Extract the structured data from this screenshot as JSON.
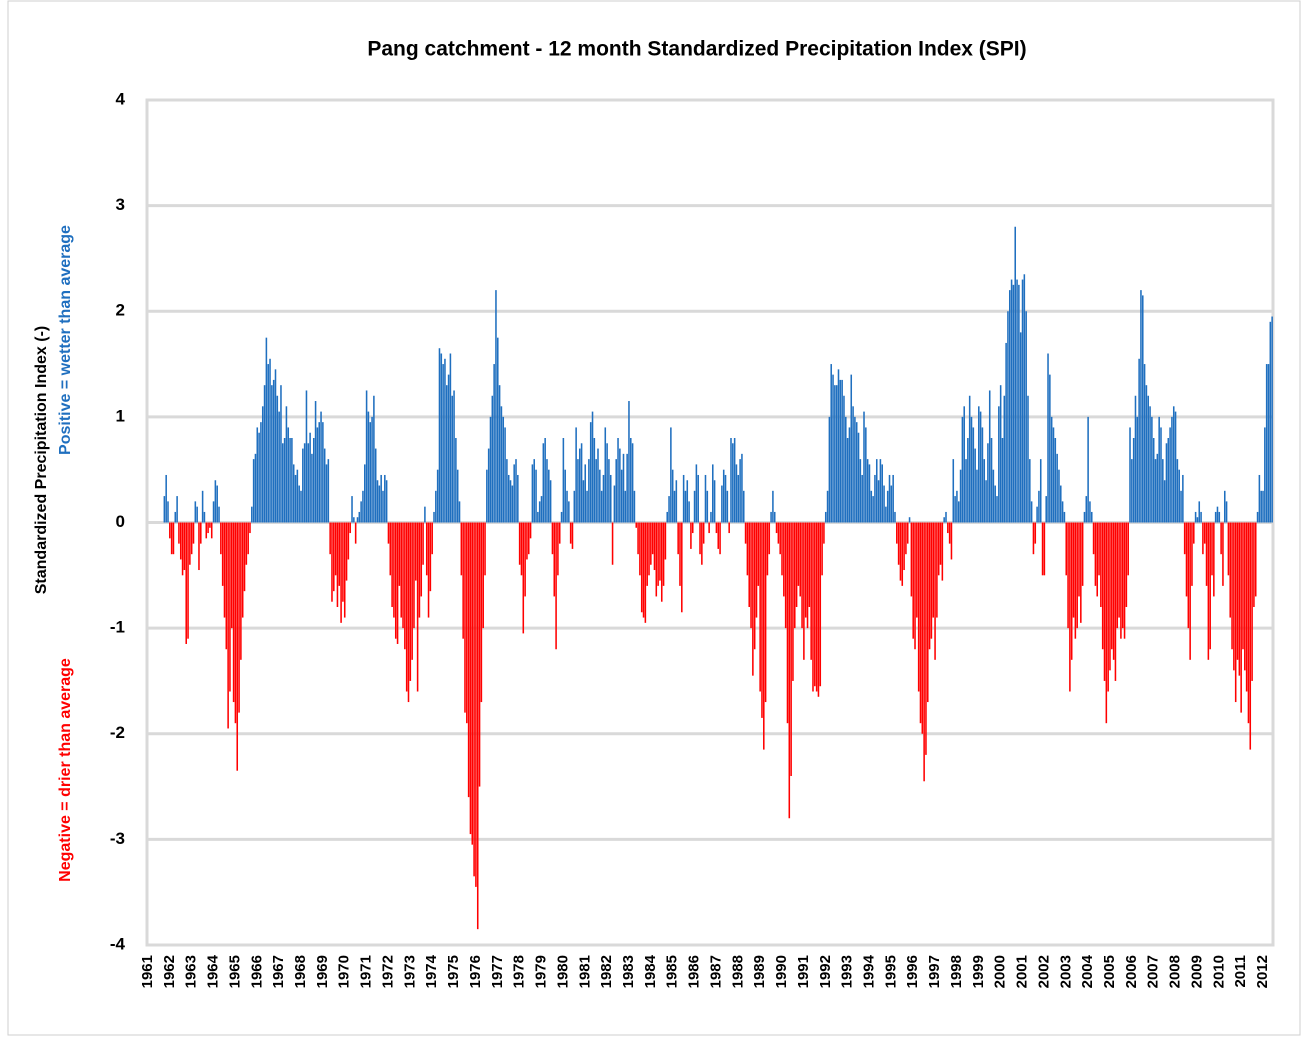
{
  "chart_data": {
    "type": "bar",
    "title": "Pang catchment - 12 month Standardized Precipitation Index (SPI)",
    "ylabel": "Standardized  Precipitation Index (-)",
    "ylabel_notes": [
      {
        "text": "Positive = wetter than average",
        "color": "#1f6fbf"
      },
      {
        "text": "Negative = drier than average",
        "color": "#ff0000"
      }
    ],
    "positive_color": "#1f6fbf",
    "negative_color": "#ff0000",
    "grid": true,
    "ylim": [
      -4,
      4
    ],
    "yticks": [
      -4,
      -3,
      -2,
      -1,
      0,
      1,
      2,
      3,
      4
    ],
    "categories": [
      "1961",
      null,
      null,
      null,
      null,
      null,
      null,
      null,
      null,
      null,
      null,
      null,
      "1962",
      null,
      null,
      null,
      null,
      null,
      null,
      null,
      null,
      null,
      null,
      null,
      "1963",
      null,
      null,
      null,
      null,
      null,
      null,
      null,
      null,
      null,
      null,
      null,
      "1964",
      null,
      null,
      null,
      null,
      null,
      null,
      null,
      null,
      null,
      null,
      null,
      "1965",
      null,
      null,
      null,
      null,
      null,
      null,
      null,
      null,
      null,
      null,
      null,
      "1966",
      null,
      null,
      null,
      null,
      null,
      null,
      null,
      null,
      null,
      null,
      null,
      "1967",
      null,
      null,
      null,
      null,
      null,
      null,
      null,
      null,
      null,
      null,
      null,
      "1968",
      null,
      null,
      null,
      null,
      null,
      null,
      null,
      null,
      null,
      null,
      null,
      "1969",
      null,
      null,
      null,
      null,
      null,
      null,
      null,
      null,
      null,
      null,
      null,
      "1970",
      null,
      null,
      null,
      null,
      null,
      null,
      null,
      null,
      null,
      null,
      null,
      "1971",
      null,
      null,
      null,
      null,
      null,
      null,
      null,
      null,
      null,
      null,
      null,
      "1972",
      null,
      null,
      null,
      null,
      null,
      null,
      null,
      null,
      null,
      null,
      null,
      "1973",
      null,
      null,
      null,
      null,
      null,
      null,
      null,
      null,
      null,
      null,
      null,
      "1974",
      null,
      null,
      null,
      null,
      null,
      null,
      null,
      null,
      null,
      null,
      null,
      "1975",
      null,
      null,
      null,
      null,
      null,
      null,
      null,
      null,
      null,
      null,
      null,
      "1976",
      null,
      null,
      null,
      null,
      null,
      null,
      null,
      null,
      null,
      null,
      null,
      "1977",
      null,
      null,
      null,
      null,
      null,
      null,
      null,
      null,
      null,
      null,
      null,
      "1978",
      null,
      null,
      null,
      null,
      null,
      null,
      null,
      null,
      null,
      null,
      null,
      "1979",
      null,
      null,
      null,
      null,
      null,
      null,
      null,
      null,
      null,
      null,
      null,
      "1980",
      null,
      null,
      null,
      null,
      null,
      null,
      null,
      null,
      null,
      null,
      null,
      "1981",
      null,
      null,
      null,
      null,
      null,
      null,
      null,
      null,
      null,
      null,
      null,
      "1982",
      null,
      null,
      null,
      null,
      null,
      null,
      null,
      null,
      null,
      null,
      null,
      "1983",
      null,
      null,
      null,
      null,
      null,
      null,
      null,
      null,
      null,
      null,
      null,
      "1984",
      null,
      null,
      null,
      null,
      null,
      null,
      null,
      null,
      null,
      null,
      null,
      "1985",
      null,
      null,
      null,
      null,
      null,
      null,
      null,
      null,
      null,
      null,
      null,
      "1986",
      null,
      null,
      null,
      null,
      null,
      null,
      null,
      null,
      null,
      null,
      null,
      "1987",
      null,
      null,
      null,
      null,
      null,
      null,
      null,
      null,
      null,
      null,
      null,
      "1988",
      null,
      null,
      null,
      null,
      null,
      null,
      null,
      null,
      null,
      null,
      null,
      "1989",
      null,
      null,
      null,
      null,
      null,
      null,
      null,
      null,
      null,
      null,
      null,
      "1990",
      null,
      null,
      null,
      null,
      null,
      null,
      null,
      null,
      null,
      null,
      null,
      "1991",
      null,
      null,
      null,
      null,
      null,
      null,
      null,
      null,
      null,
      null,
      null,
      "1992",
      null,
      null,
      null,
      null,
      null,
      null,
      null,
      null,
      null,
      null,
      null,
      "1993",
      null,
      null,
      null,
      null,
      null,
      null,
      null,
      null,
      null,
      null,
      null,
      "1994",
      null,
      null,
      null,
      null,
      null,
      null,
      null,
      null,
      null,
      null,
      null,
      "1995",
      null,
      null,
      null,
      null,
      null,
      null,
      null,
      null,
      null,
      null,
      null,
      "1996",
      null,
      null,
      null,
      null,
      null,
      null,
      null,
      null,
      null,
      null,
      null,
      "1997",
      null,
      null,
      null,
      null,
      null,
      null,
      null,
      null,
      null,
      null,
      null,
      "1998",
      null,
      null,
      null,
      null,
      null,
      null,
      null,
      null,
      null,
      null,
      null,
      "1999",
      null,
      null,
      null,
      null,
      null,
      null,
      null,
      null,
      null,
      null,
      null,
      "2000",
      null,
      null,
      null,
      null,
      null,
      null,
      null,
      null,
      null,
      null,
      null,
      "2001",
      null,
      null,
      null,
      null,
      null,
      null,
      null,
      null,
      null,
      null,
      null,
      "2002",
      null,
      null,
      null,
      null,
      null,
      null,
      null,
      null,
      null,
      null,
      null,
      "2003",
      null,
      null,
      null,
      null,
      null,
      null,
      null,
      null,
      null,
      null,
      null,
      "2004",
      null,
      null,
      null,
      null,
      null,
      null,
      null,
      null,
      null,
      null,
      null,
      "2005",
      null,
      null,
      null,
      null,
      null,
      null,
      null,
      null,
      null,
      null,
      null,
      "2006",
      null,
      null,
      null,
      null,
      null,
      null,
      null,
      null,
      null,
      null,
      null,
      "2007",
      null,
      null,
      null,
      null,
      null,
      null,
      null,
      null,
      null,
      null,
      null,
      "2008",
      null,
      null,
      null,
      null,
      null,
      null,
      null,
      null,
      null,
      null,
      null,
      "2009",
      null,
      null,
      null,
      null,
      null,
      null,
      null,
      null,
      null,
      null,
      null,
      "2010",
      null,
      null,
      null,
      null,
      null,
      null,
      null,
      null,
      null,
      null,
      null,
      "2011",
      null,
      null,
      null,
      null,
      null,
      null,
      null,
      null,
      null,
      null,
      null,
      "2012",
      null,
      null,
      null,
      null,
      null
    ],
    "values": [
      null,
      null,
      null,
      null,
      null,
      null,
      null,
      null,
      null,
      0.25,
      0.45,
      0.2,
      -0.15,
      -0.3,
      -0.3,
      0.1,
      0.25,
      -0.2,
      -0.35,
      -0.5,
      -0.45,
      -1.15,
      -1.1,
      -0.4,
      -0.3,
      -0.2,
      0.2,
      0.15,
      -0.45,
      -0.2,
      0.3,
      0.1,
      -0.15,
      -0.1,
      -0.05,
      -0.15,
      0.2,
      0.4,
      0.35,
      0.15,
      -0.3,
      -0.6,
      -0.9,
      -1.2,
      -1.95,
      -1.6,
      -1.0,
      -1.7,
      -1.9,
      -2.35,
      -1.8,
      -1.3,
      -0.9,
      -0.65,
      -0.4,
      -0.3,
      -0.1,
      0.15,
      0.6,
      0.65,
      0.9,
      0.85,
      0.95,
      1.1,
      1.3,
      1.75,
      1.5,
      1.55,
      1.3,
      1.35,
      1.45,
      1.2,
      1.05,
      1.3,
      0.75,
      0.8,
      1.1,
      0.9,
      0.8,
      0.8,
      0.55,
      0.45,
      0.5,
      0.35,
      0.3,
      0.7,
      0.75,
      1.25,
      0.75,
      0.85,
      0.65,
      0.8,
      1.15,
      0.9,
      0.95,
      1.05,
      0.95,
      0.7,
      0.55,
      0.6,
      -0.3,
      -0.75,
      -0.65,
      -0.5,
      -0.8,
      -0.6,
      -0.95,
      -0.75,
      -0.9,
      -0.55,
      -0.35,
      -0.1,
      0.25,
      0.05,
      -0.2,
      0.05,
      0.1,
      0.2,
      0.3,
      0.55,
      1.25,
      1.05,
      0.95,
      1.0,
      1.2,
      0.7,
      0.4,
      0.35,
      0.45,
      0.3,
      0.45,
      0.4,
      -0.2,
      -0.5,
      -0.8,
      -0.9,
      -1.1,
      -1.15,
      -0.6,
      -0.9,
      -1.0,
      -1.2,
      -1.6,
      -1.7,
      -1.5,
      -1.3,
      -1.0,
      -0.55,
      -1.6,
      -0.9,
      -0.7,
      -0.4,
      0.15,
      -0.5,
      -0.9,
      -0.65,
      -0.3,
      0.1,
      0.3,
      0.5,
      1.65,
      1.6,
      1.5,
      1.55,
      1.3,
      1.4,
      1.6,
      1.2,
      1.25,
      0.8,
      0.5,
      0.2,
      -0.5,
      -1.1,
      -1.8,
      -1.9,
      -2.6,
      -2.95,
      -3.05,
      -3.35,
      -3.45,
      -3.85,
      -2.5,
      -1.7,
      -1.0,
      -0.5,
      0.5,
      0.7,
      1.0,
      1.2,
      1.5,
      2.2,
      1.75,
      1.3,
      1.1,
      1.0,
      0.9,
      0.6,
      0.45,
      0.4,
      0.35,
      0.55,
      0.6,
      0.45,
      -0.4,
      -0.5,
      -1.05,
      -0.7,
      -0.35,
      -0.3,
      -0.15,
      0.55,
      0.6,
      0.5,
      0.1,
      0.2,
      0.25,
      0.75,
      0.8,
      0.6,
      0.5,
      0.4,
      -0.3,
      -0.7,
      -1.2,
      -0.5,
      -0.2,
      0.1,
      0.8,
      0.5,
      0.3,
      0.2,
      -0.2,
      -0.25,
      0.3,
      0.9,
      0.6,
      0.7,
      0.75,
      0.4,
      0.55,
      0.3,
      0.6,
      0.95,
      1.05,
      0.8,
      0.6,
      0.7,
      0.5,
      0.3,
      0.45,
      0.9,
      0.75,
      0.6,
      0.45,
      -0.4,
      0.35,
      0.6,
      0.8,
      0.7,
      0.5,
      0.65,
      0.3,
      0.65,
      1.15,
      0.8,
      0.75,
      0.3,
      -0.05,
      -0.3,
      -0.5,
      -0.85,
      -0.9,
      -0.95,
      -0.6,
      -0.5,
      -0.4,
      -0.3,
      -0.45,
      -0.7,
      -0.6,
      -0.55,
      -0.75,
      -0.6,
      -0.35,
      0.1,
      0.25,
      0.9,
      0.5,
      0.3,
      0.4,
      -0.3,
      -0.6,
      -0.85,
      0.45,
      0.3,
      0.4,
      0.2,
      -0.25,
      -0.1,
      0.3,
      0.55,
      0.45,
      -0.3,
      -0.4,
      -0.2,
      0.45,
      0.3,
      -0.1,
      0.1,
      0.55,
      0.4,
      -0.1,
      -0.25,
      -0.3,
      0.35,
      0.5,
      0.45,
      0.3,
      -0.1,
      0.8,
      0.75,
      0.8,
      0.55,
      0.45,
      0.6,
      0.65,
      0.3,
      -0.2,
      -0.5,
      -0.8,
      -1.0,
      -1.45,
      -1.2,
      -0.9,
      -0.6,
      -1.6,
      -1.85,
      -2.15,
      -1.7,
      -0.5,
      -0.3,
      0.1,
      0.3,
      0.1,
      -0.1,
      -0.2,
      -0.3,
      -0.5,
      -0.7,
      -1.0,
      -1.9,
      -2.8,
      -2.4,
      -1.5,
      -1.0,
      -0.8,
      -0.6,
      -0.7,
      -1.0,
      -1.3,
      -0.9,
      -1.0,
      -0.8,
      -1.3,
      -1.6,
      -1.55,
      -1.6,
      -1.65,
      -1.55,
      -0.5,
      -0.2,
      0.1,
      0.3,
      1.0,
      1.5,
      1.4,
      1.3,
      1.3,
      1.45,
      1.35,
      1.35,
      1.2,
      1.0,
      0.8,
      0.9,
      1.4,
      1.1,
      1.0,
      0.95,
      0.85,
      0.6,
      0.45,
      1.05,
      0.9,
      0.6,
      0.55,
      0.3,
      0.25,
      0.45,
      0.6,
      0.4,
      0.6,
      0.55,
      0.35,
      0.15,
      0.3,
      0.45,
      0.35,
      0.45,
      0.1,
      -0.2,
      -0.4,
      -0.55,
      -0.6,
      -0.45,
      -0.3,
      -0.2,
      0.05,
      -0.7,
      -1.1,
      -1.2,
      -0.9,
      -1.6,
      -1.9,
      -2.0,
      -2.45,
      -2.2,
      -1.7,
      -1.2,
      -1.1,
      -0.9,
      -1.3,
      -0.9,
      -0.5,
      -0.4,
      -0.55,
      0.05,
      0.1,
      -0.1,
      -0.2,
      -0.35,
      0.6,
      0.25,
      0.3,
      0.2,
      0.5,
      1.0,
      1.1,
      0.6,
      0.8,
      1.2,
      1.0,
      0.9,
      0.7,
      0.5,
      1.1,
      1.05,
      0.9,
      0.6,
      0.4,
      0.75,
      1.25,
      0.8,
      0.5,
      0.35,
      0.25,
      1.1,
      1.3,
      0.8,
      1.2,
      1.7,
      2.0,
      2.2,
      2.3,
      2.25,
      2.8,
      2.3,
      2.25,
      1.8,
      2.3,
      2.35,
      2.0,
      1.2,
      0.6,
      0.2,
      -0.3,
      -0.2,
      0.15,
      0.3,
      0.6,
      -0.5,
      -0.5,
      0.25,
      1.6,
      1.4,
      1.0,
      0.9,
      0.8,
      0.65,
      0.5,
      0.35,
      0.2,
      0.1,
      -0.5,
      -1.0,
      -1.6,
      -1.3,
      -0.9,
      -1.1,
      -1.0,
      -0.7,
      -0.95,
      -0.6,
      0.1,
      0.25,
      1.0,
      0.2,
      0.1,
      -0.3,
      -0.6,
      -0.7,
      -0.5,
      -0.8,
      -1.2,
      -1.5,
      -1.9,
      -1.6,
      -1.4,
      -1.2,
      -1.3,
      -1.5,
      -1.0,
      -0.9,
      -1.1,
      -1.0,
      -1.1,
      -0.8,
      -0.5,
      0.9,
      0.6,
      0.8,
      1.2,
      1.0,
      1.55,
      2.2,
      2.15,
      1.5,
      1.3,
      1.2,
      1.1,
      1.0,
      0.8,
      0.6,
      0.65,
      1.0,
      0.9,
      0.6,
      0.4,
      0.75,
      0.8,
      0.9,
      1.0,
      1.1,
      1.05,
      0.6,
      0.5,
      0.3,
      0.45,
      -0.3,
      -0.7,
      -1.0,
      -1.3,
      -0.6,
      -0.2,
      0.1,
      0.05,
      0.2,
      0.1,
      -0.3,
      -0.2,
      -0.6,
      -1.3,
      -1.2,
      -0.5,
      -0.7,
      0.1,
      0.15,
      0.1,
      -0.3,
      -0.6,
      0.3,
      0.2,
      -0.5,
      -0.9,
      -1.2,
      -1.4,
      -1.7,
      -1.3,
      -1.45,
      -1.8,
      -1.2,
      -1.4,
      -1.6,
      -1.9,
      -2.15,
      -1.5,
      -0.8,
      -0.7,
      0.1,
      0.45,
      0.3,
      0.3,
      0.9,
      1.5,
      1.5,
      1.9,
      1.95
    ]
  }
}
